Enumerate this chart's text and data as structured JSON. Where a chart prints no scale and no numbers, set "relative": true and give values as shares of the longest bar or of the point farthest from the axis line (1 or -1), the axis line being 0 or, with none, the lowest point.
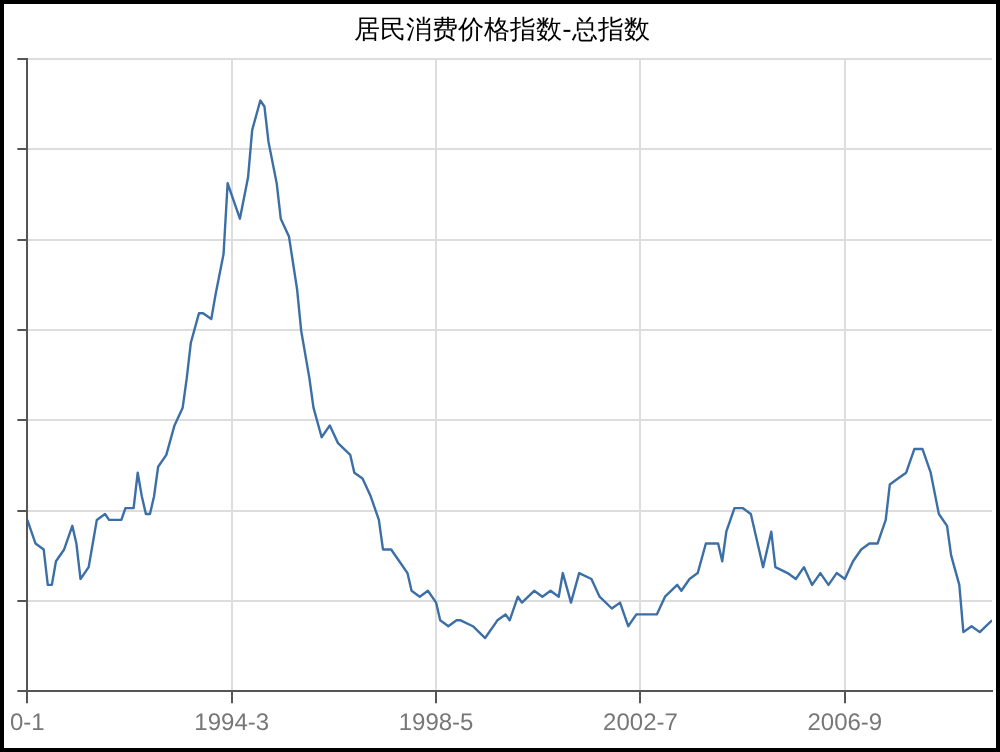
{
  "chart_data": {
    "type": "line",
    "title": "居民消费价格指数-总指数",
    "relative": true,
    "grid": true,
    "legend": false,
    "marker": "none",
    "line_style": "solid",
    "xlim": [
      "1990-01",
      "2009-09"
    ],
    "xticks": [
      {
        "value": "1990-01",
        "label": "0-1"
      },
      {
        "value": "1994-03",
        "label": "1994-3"
      },
      {
        "value": "1998-05",
        "label": "1998-5"
      },
      {
        "value": "2002-07",
        "label": "2002-7"
      },
      {
        "value": "2006-09",
        "label": "2006-9"
      }
    ],
    "x": [
      "1990-01",
      "1990-03",
      "1990-05",
      "1990-06",
      "1990-07",
      "1990-08",
      "1990-10",
      "1990-11",
      "1990-12",
      "1991-01",
      "1991-02",
      "1991-03",
      "1991-04",
      "1991-05",
      "1991-06",
      "1991-08",
      "1991-09",
      "1991-11",
      "1991-12",
      "1992-01",
      "1992-03",
      "1992-04",
      "1992-05",
      "1992-06",
      "1992-07",
      "1992-08",
      "1992-09",
      "1992-11",
      "1993-01",
      "1993-03",
      "1993-04",
      "1993-05",
      "1993-07",
      "1993-08",
      "1993-10",
      "1993-11",
      "1994-01",
      "1994-02",
      "1994-03",
      "1994-05",
      "1994-07",
      "1994-08",
      "1994-10",
      "1994-11",
      "1994-12",
      "1995-02",
      "1995-03",
      "1995-05",
      "1995-07",
      "1995-08",
      "1995-10",
      "1995-11",
      "1996-01",
      "1996-03",
      "1996-05",
      "1996-08",
      "1996-09",
      "1996-11",
      "1997-01",
      "1997-03",
      "1997-04",
      "1997-06",
      "1997-08",
      "1997-10",
      "1997-11",
      "1998-01",
      "1998-03",
      "1998-05",
      "1998-06",
      "1998-08",
      "1998-10",
      "1998-11",
      "1999-02",
      "1999-05",
      "1999-08",
      "1999-10",
      "1999-11",
      "2000-01",
      "2000-02",
      "2000-05",
      "2000-07",
      "2000-09",
      "2000-11",
      "2000-12",
      "2001-02",
      "2001-04",
      "2001-07",
      "2001-09",
      "2001-12",
      "2002-02",
      "2002-04",
      "2002-06",
      "2002-08",
      "2002-11",
      "2003-01",
      "2003-04",
      "2003-05",
      "2003-07",
      "2003-09",
      "2003-11",
      "2004-02",
      "2004-03",
      "2004-04",
      "2004-06",
      "2004-08",
      "2004-10",
      "2004-12",
      "2005-01",
      "2005-03",
      "2005-04",
      "2005-07",
      "2005-09",
      "2005-11",
      "2006-01",
      "2006-03",
      "2006-05",
      "2006-07",
      "2006-09",
      "2006-11",
      "2007-01",
      "2007-03",
      "2007-05",
      "2007-07",
      "2007-08",
      "2007-10",
      "2007-12",
      "2008-02",
      "2008-04",
      "2008-06",
      "2008-08",
      "2008-10",
      "2008-11",
      "2009-01",
      "2009-02",
      "2009-04",
      "2009-06",
      "2009-09"
    ],
    "series": [
      {
        "color": "#3b6fa6",
        "values": [
          0.29,
          0.25,
          0.24,
          0.18,
          0.18,
          0.22,
          0.24,
          0.26,
          0.28,
          0.25,
          0.19,
          0.2,
          0.21,
          0.25,
          0.29,
          0.3,
          0.29,
          0.29,
          0.29,
          0.31,
          0.31,
          0.37,
          0.33,
          0.3,
          0.3,
          0.33,
          0.38,
          0.4,
          0.45,
          0.48,
          0.53,
          0.59,
          0.64,
          0.64,
          0.63,
          0.67,
          0.74,
          0.86,
          0.84,
          0.8,
          0.87,
          0.95,
          1,
          0.99,
          0.93,
          0.86,
          0.8,
          0.77,
          0.68,
          0.61,
          0.53,
          0.48,
          0.43,
          0.45,
          0.42,
          0.4,
          0.37,
          0.36,
          0.33,
          0.29,
          0.24,
          0.24,
          0.22,
          0.2,
          0.17,
          0.16,
          0.17,
          0.15,
          0.12,
          0.11,
          0.12,
          0.12,
          0.11,
          0.09,
          0.12,
          0.13,
          0.12,
          0.16,
          0.15,
          0.17,
          0.16,
          0.17,
          0.16,
          0.2,
          0.15,
          0.2,
          0.19,
          0.16,
          0.14,
          0.15,
          0.11,
          0.13,
          0.13,
          0.13,
          0.16,
          0.18,
          0.17,
          0.19,
          0.2,
          0.25,
          0.25,
          0.22,
          0.27,
          0.31,
          0.31,
          0.3,
          0.24,
          0.21,
          0.27,
          0.21,
          0.2,
          0.19,
          0.21,
          0.18,
          0.2,
          0.18,
          0.2,
          0.19,
          0.22,
          0.24,
          0.25,
          0.25,
          0.29,
          0.35,
          0.36,
          0.37,
          0.41,
          0.41,
          0.37,
          0.3,
          0.28,
          0.23,
          0.18,
          0.1,
          0.11,
          0.1,
          0.12
        ]
      }
    ]
  }
}
